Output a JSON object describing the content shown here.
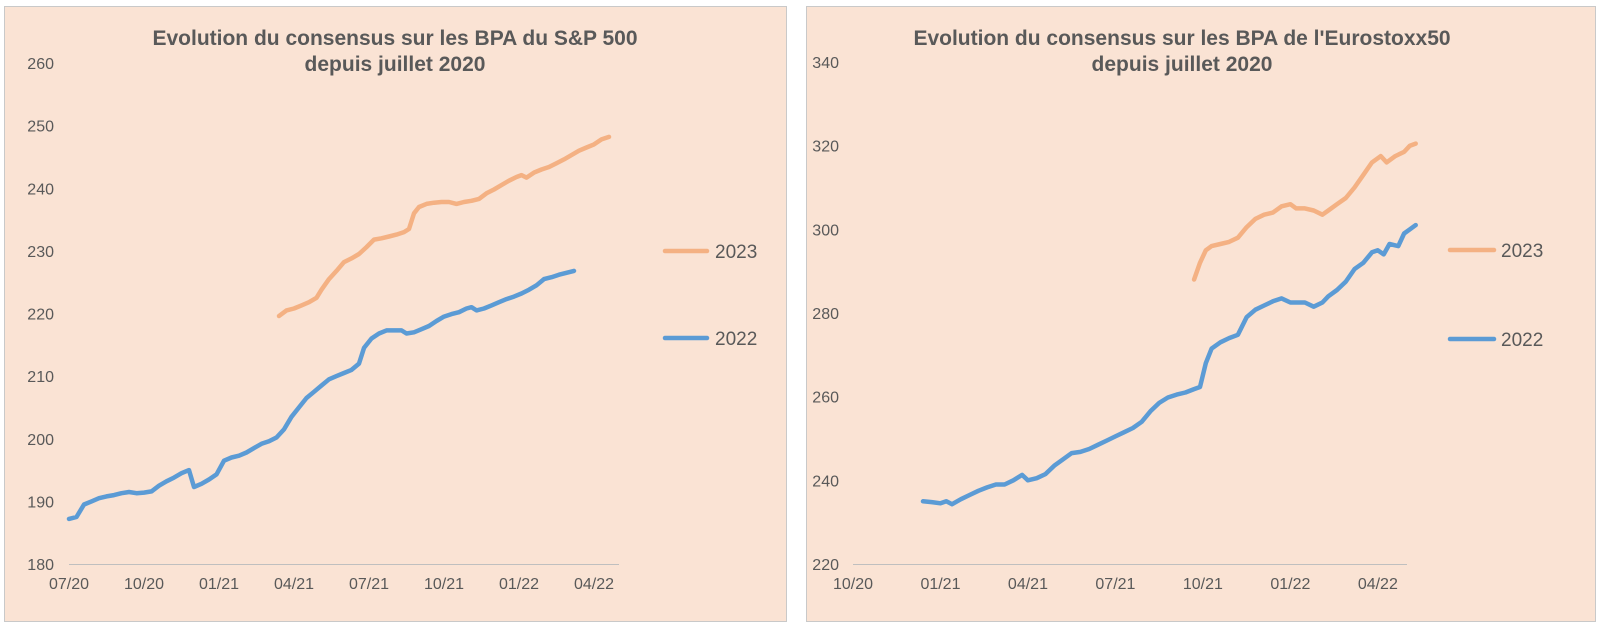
{
  "chart_data": [
    {
      "type": "line",
      "title_lines": [
        "Evolution du consensus sur les BPA du S&P 500",
        "depuis juillet 2020"
      ],
      "x_tick_labels": [
        "07/20",
        "10/20",
        "01/21",
        "04/21",
        "07/21",
        "10/21",
        "01/22",
        "04/22"
      ],
      "x_unit": "month index from 07/20",
      "x_range": [
        0,
        22
      ],
      "y_ticks": [
        180,
        190,
        200,
        210,
        220,
        230,
        240,
        250,
        260
      ],
      "ylim": [
        180,
        260
      ],
      "grid": false,
      "legend_position": "right",
      "series": [
        {
          "name": "2023",
          "color": "#f4b183",
          "points": [
            [
              8.4,
              219.6
            ],
            [
              8.7,
              220.5
            ],
            [
              9.0,
              220.8
            ],
            [
              9.3,
              221.3
            ],
            [
              9.6,
              221.8
            ],
            [
              9.9,
              222.5
            ],
            [
              10.1,
              223.8
            ],
            [
              10.4,
              225.5
            ],
            [
              10.7,
              226.8
            ],
            [
              11.0,
              228.2
            ],
            [
              11.3,
              228.8
            ],
            [
              11.6,
              229.5
            ],
            [
              11.9,
              230.6
            ],
            [
              12.2,
              231.8
            ],
            [
              12.5,
              232.0
            ],
            [
              12.8,
              232.3
            ],
            [
              13.1,
              232.6
            ],
            [
              13.4,
              233.0
            ],
            [
              13.6,
              233.5
            ],
            [
              13.8,
              236.0
            ],
            [
              14.0,
              237.0
            ],
            [
              14.3,
              237.5
            ],
            [
              14.6,
              237.7
            ],
            [
              14.9,
              237.8
            ],
            [
              15.2,
              237.8
            ],
            [
              15.5,
              237.5
            ],
            [
              15.8,
              237.8
            ],
            [
              16.1,
              238.0
            ],
            [
              16.4,
              238.3
            ],
            [
              16.7,
              239.2
            ],
            [
              17.0,
              239.8
            ],
            [
              17.3,
              240.5
            ],
            [
              17.6,
              241.2
            ],
            [
              17.9,
              241.8
            ],
            [
              18.1,
              242.1
            ],
            [
              18.3,
              241.7
            ],
            [
              18.6,
              242.5
            ],
            [
              18.9,
              243.0
            ],
            [
              19.2,
              243.4
            ],
            [
              19.5,
              244.0
            ],
            [
              19.8,
              244.6
            ],
            [
              20.1,
              245.3
            ],
            [
              20.4,
              246.0
            ],
            [
              20.7,
              246.5
            ],
            [
              21.0,
              247.0
            ],
            [
              21.3,
              247.8
            ],
            [
              21.6,
              248.2
            ]
          ]
        },
        {
          "name": "2022",
          "color": "#5b9bd5",
          "points": [
            [
              0.0,
              187.2
            ],
            [
              0.3,
              187.5
            ],
            [
              0.6,
              189.5
            ],
            [
              0.9,
              190.0
            ],
            [
              1.2,
              190.5
            ],
            [
              1.5,
              190.8
            ],
            [
              1.8,
              191.0
            ],
            [
              2.1,
              191.3
            ],
            [
              2.4,
              191.5
            ],
            [
              2.7,
              191.3
            ],
            [
              3.0,
              191.4
            ],
            [
              3.3,
              191.6
            ],
            [
              3.6,
              192.5
            ],
            [
              3.9,
              193.2
            ],
            [
              4.2,
              193.8
            ],
            [
              4.5,
              194.5
            ],
            [
              4.8,
              195.0
            ],
            [
              5.0,
              192.3
            ],
            [
              5.3,
              192.8
            ],
            [
              5.6,
              193.5
            ],
            [
              5.9,
              194.3
            ],
            [
              6.2,
              196.5
            ],
            [
              6.5,
              197.0
            ],
            [
              6.8,
              197.3
            ],
            [
              7.1,
              197.8
            ],
            [
              7.4,
              198.5
            ],
            [
              7.7,
              199.2
            ],
            [
              8.0,
              199.6
            ],
            [
              8.3,
              200.2
            ],
            [
              8.6,
              201.5
            ],
            [
              8.9,
              203.5
            ],
            [
              9.2,
              205.0
            ],
            [
              9.5,
              206.5
            ],
            [
              9.8,
              207.5
            ],
            [
              10.1,
              208.5
            ],
            [
              10.4,
              209.5
            ],
            [
              10.7,
              210.0
            ],
            [
              11.0,
              210.5
            ],
            [
              11.3,
              211.0
            ],
            [
              11.6,
              212.0
            ],
            [
              11.8,
              214.5
            ],
            [
              12.1,
              216.0
            ],
            [
              12.4,
              216.8
            ],
            [
              12.7,
              217.3
            ],
            [
              13.0,
              217.3
            ],
            [
              13.3,
              217.3
            ],
            [
              13.5,
              216.8
            ],
            [
              13.8,
              217.0
            ],
            [
              14.1,
              217.5
            ],
            [
              14.4,
              218.0
            ],
            [
              14.7,
              218.8
            ],
            [
              15.0,
              219.5
            ],
            [
              15.3,
              219.9
            ],
            [
              15.6,
              220.2
            ],
            [
              15.9,
              220.8
            ],
            [
              16.1,
              221.0
            ],
            [
              16.3,
              220.5
            ],
            [
              16.6,
              220.8
            ],
            [
              16.9,
              221.3
            ],
            [
              17.2,
              221.8
            ],
            [
              17.5,
              222.3
            ],
            [
              17.8,
              222.7
            ],
            [
              18.1,
              223.2
            ],
            [
              18.4,
              223.8
            ],
            [
              18.7,
              224.5
            ],
            [
              19.0,
              225.5
            ],
            [
              19.3,
              225.8
            ],
            [
              19.6,
              226.2
            ],
            [
              19.9,
              226.5
            ],
            [
              20.2,
              226.8
            ]
          ]
        }
      ]
    },
    {
      "type": "line",
      "title_lines": [
        "Evolution du consensus sur les BPA de l'Eurostoxx50",
        "depuis juillet 2020"
      ],
      "x_tick_labels": [
        "10/20",
        "01/21",
        "04/21",
        "07/21",
        "10/21",
        "01/22",
        "04/22"
      ],
      "x_unit": "month index from 10/20",
      "x_range": [
        0,
        19
      ],
      "y_ticks": [
        220,
        240,
        260,
        280,
        300,
        320,
        340
      ],
      "ylim": [
        220,
        340
      ],
      "grid": false,
      "legend_position": "right",
      "series": [
        {
          "name": "2023",
          "color": "#f4b183",
          "points": [
            [
              11.7,
              288.0
            ],
            [
              11.9,
              292.0
            ],
            [
              12.1,
              295.0
            ],
            [
              12.3,
              296.0
            ],
            [
              12.6,
              296.5
            ],
            [
              12.9,
              297.0
            ],
            [
              13.2,
              298.0
            ],
            [
              13.5,
              300.5
            ],
            [
              13.8,
              302.5
            ],
            [
              14.1,
              303.5
            ],
            [
              14.4,
              304.0
            ],
            [
              14.7,
              305.5
            ],
            [
              15.0,
              306.0
            ],
            [
              15.2,
              305.0
            ],
            [
              15.5,
              305.0
            ],
            [
              15.8,
              304.5
            ],
            [
              16.1,
              303.5
            ],
            [
              16.3,
              304.5
            ],
            [
              16.6,
              306.0
            ],
            [
              16.9,
              307.5
            ],
            [
              17.2,
              310.0
            ],
            [
              17.5,
              313.0
            ],
            [
              17.8,
              316.0
            ],
            [
              18.1,
              317.5
            ],
            [
              18.3,
              316.0
            ],
            [
              18.6,
              317.5
            ],
            [
              18.9,
              318.5
            ],
            [
              19.1,
              320.0
            ],
            [
              19.3,
              320.5
            ]
          ]
        },
        {
          "name": "2022",
          "color": "#5b9bd5",
          "points": [
            [
              2.4,
              235.0
            ],
            [
              2.7,
              234.8
            ],
            [
              3.0,
              234.5
            ],
            [
              3.2,
              235.0
            ],
            [
              3.4,
              234.3
            ],
            [
              3.7,
              235.5
            ],
            [
              4.0,
              236.5
            ],
            [
              4.3,
              237.5
            ],
            [
              4.6,
              238.3
            ],
            [
              4.9,
              239.0
            ],
            [
              5.2,
              239.0
            ],
            [
              5.5,
              240.0
            ],
            [
              5.8,
              241.3
            ],
            [
              6.0,
              240.0
            ],
            [
              6.3,
              240.5
            ],
            [
              6.6,
              241.5
            ],
            [
              6.9,
              243.5
            ],
            [
              7.2,
              245.0
            ],
            [
              7.5,
              246.5
            ],
            [
              7.8,
              246.8
            ],
            [
              8.1,
              247.5
            ],
            [
              8.4,
              248.5
            ],
            [
              8.7,
              249.5
            ],
            [
              9.0,
              250.5
            ],
            [
              9.3,
              251.5
            ],
            [
              9.6,
              252.5
            ],
            [
              9.9,
              254.0
            ],
            [
              10.2,
              256.5
            ],
            [
              10.5,
              258.5
            ],
            [
              10.8,
              259.8
            ],
            [
              11.1,
              260.5
            ],
            [
              11.4,
              261.0
            ],
            [
              11.7,
              261.8
            ],
            [
              11.9,
              262.3
            ],
            [
              12.1,
              268.0
            ],
            [
              12.3,
              271.5
            ],
            [
              12.6,
              273.0
            ],
            [
              12.9,
              274.0
            ],
            [
              13.2,
              274.8
            ],
            [
              13.5,
              279.0
            ],
            [
              13.8,
              280.8
            ],
            [
              14.1,
              281.8
            ],
            [
              14.4,
              282.8
            ],
            [
              14.7,
              283.5
            ],
            [
              15.0,
              282.5
            ],
            [
              15.3,
              282.5
            ],
            [
              15.5,
              282.5
            ],
            [
              15.8,
              281.5
            ],
            [
              16.1,
              282.5
            ],
            [
              16.3,
              284.0
            ],
            [
              16.6,
              285.5
            ],
            [
              16.9,
              287.5
            ],
            [
              17.2,
              290.5
            ],
            [
              17.5,
              292.0
            ],
            [
              17.8,
              294.5
            ],
            [
              18.0,
              295.0
            ],
            [
              18.2,
              294.0
            ],
            [
              18.4,
              296.5
            ],
            [
              18.7,
              296.0
            ],
            [
              18.9,
              299.0
            ],
            [
              19.1,
              300.0
            ],
            [
              19.3,
              301.0
            ]
          ]
        }
      ]
    }
  ]
}
